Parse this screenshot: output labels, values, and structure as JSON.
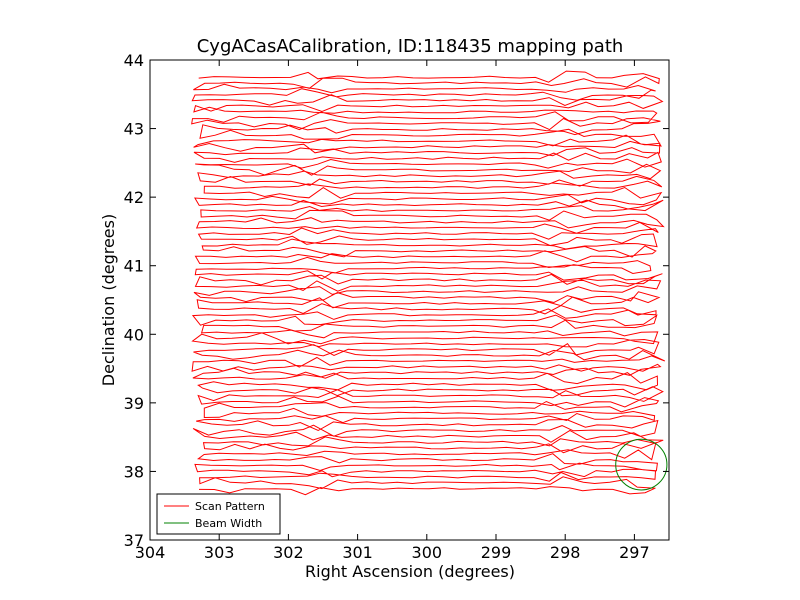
{
  "chart_data": {
    "type": "line",
    "title": "CygACasACalibration, ID:118435 mapping path",
    "xlabel": "Right Ascension (degrees)",
    "ylabel": "Declination (degrees)",
    "xlim": [
      304,
      296.5
    ],
    "ylim": [
      37,
      44
    ],
    "x_inverted": true,
    "xticks": [
      304,
      303,
      302,
      301,
      300,
      299,
      298,
      297
    ],
    "xtick_labels": [
      "304",
      "303",
      "302",
      "301",
      "300",
      "299",
      "298",
      "297"
    ],
    "yticks": [
      37,
      38,
      39,
      40,
      41,
      42,
      43,
      44
    ],
    "ytick_labels": [
      "37",
      "38",
      "39",
      "40",
      "41",
      "42",
      "43",
      "44"
    ],
    "grid": false,
    "legend": {
      "position": "bottom-left"
    },
    "series": [
      {
        "name": "Scan Pattern",
        "color": "#ff0000",
        "description_type": "raster",
        "ra_west_end": 303.3,
        "ra_east_end": 296.6,
        "dec_start": 43.75,
        "dec_end": 37.75,
        "rows": 72,
        "jitter_bands_ra": [
          301.6,
          298.0,
          296.8
        ]
      },
      {
        "name": "Beam Width",
        "color": "#008000",
        "description_type": "circle",
        "center_ra": 296.9,
        "center_dec": 38.1,
        "radius_deg": 0.37
      }
    ]
  }
}
